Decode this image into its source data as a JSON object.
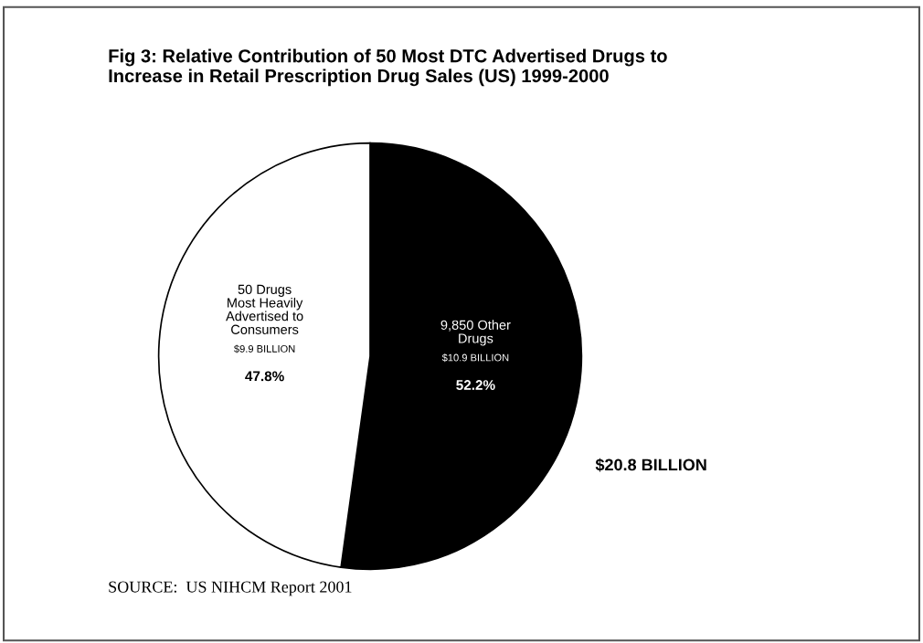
{
  "chart_data": {
    "type": "pie",
    "title": "Fig 3: Relative Contribution of 50 Most DTC Advertised Drugs to\nIncrease in Retail Prescription Drug Sales (US) 1999-2000",
    "categories": [
      "9,850 Other\nDrugs",
      "50 Drugs\nMost Heavily\nAdvertised to\nConsumers"
    ],
    "values": [
      52.2,
      47.8
    ],
    "colors": [
      "#000000",
      "#ffffff"
    ],
    "value_labels": [
      "52.2%",
      "47.8%"
    ],
    "data_labels": true,
    "legend": false,
    "annotations": [
      "$10.9 BILLION",
      "$9.9 BILLION",
      "$20.8 BILLION",
      "SOURCE:  US NIHCM Report 2001"
    ]
  }
}
